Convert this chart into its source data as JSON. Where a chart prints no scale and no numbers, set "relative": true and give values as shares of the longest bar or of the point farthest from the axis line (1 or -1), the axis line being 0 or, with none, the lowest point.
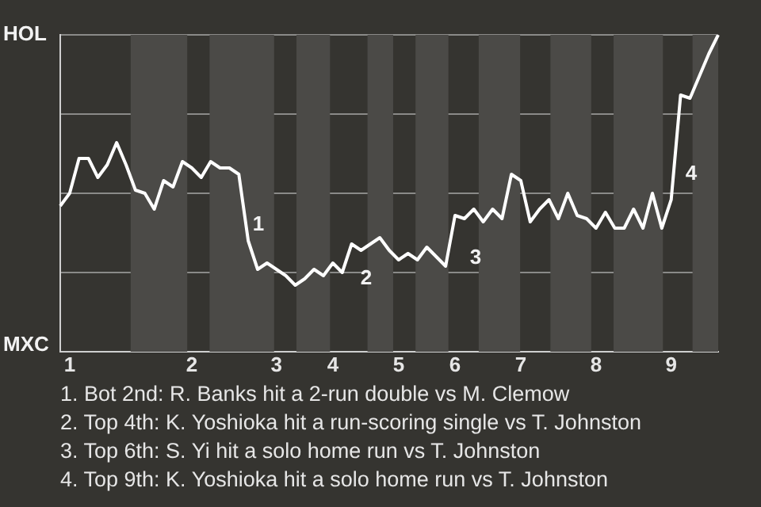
{
  "chart_data": {
    "type": "line",
    "relative": true,
    "categories": [
      null,
      "1",
      null,
      null,
      null,
      null,
      null,
      null,
      null,
      null,
      null,
      null,
      null,
      null,
      "2",
      null,
      null,
      null,
      null,
      null,
      null,
      null,
      null,
      "3",
      null,
      null,
      null,
      null,
      null,
      "4",
      null,
      null,
      null,
      null,
      null,
      null,
      "5",
      null,
      null,
      null,
      null,
      null,
      "6",
      null,
      null,
      null,
      null,
      null,
      null,
      "7",
      null,
      null,
      null,
      null,
      null,
      null,
      null,
      "8",
      null,
      null,
      null,
      null,
      null,
      null,
      null,
      "9",
      null,
      null,
      null,
      null,
      null
    ],
    "series": [
      {
        "color": "#ffffff",
        "values": [
          0.46,
          0.5,
          0.61,
          0.61,
          0.55,
          0.59,
          0.66,
          0.59,
          0.51,
          0.5,
          0.45,
          0.54,
          0.52,
          0.6,
          0.58,
          0.55,
          0.6,
          0.58,
          0.58,
          0.56,
          0.35,
          0.26,
          0.28,
          0.26,
          0.24,
          0.21,
          0.23,
          0.26,
          0.24,
          0.28,
          0.25,
          0.34,
          0.32,
          0.34,
          0.36,
          0.32,
          0.29,
          0.31,
          0.29,
          0.33,
          0.3,
          0.27,
          0.43,
          0.42,
          0.45,
          0.41,
          0.45,
          0.42,
          0.56,
          0.54,
          0.41,
          0.45,
          0.48,
          0.42,
          0.5,
          0.43,
          0.42,
          0.39,
          0.44,
          0.39,
          0.39,
          0.45,
          0.39,
          0.5,
          0.39,
          0.48,
          0.81,
          0.8,
          0.87,
          0.94,
          1
        ]
      }
    ],
    "grid": "y",
    "marker": "none",
    "line_style": "solid",
    "annotations": [
      "HOL",
      "MXC",
      "1",
      "2",
      "3",
      "4",
      "1. Bot 2nd: R. Banks hit a 2-run double vs M. Clemow",
      "2. Top 4th: K. Yoshioka hit a run-scoring single vs T. Johnston",
      "3. Top 6th: S. Yi hit a solo home run vs T. Johnston",
      "4. Top 9th: K. Yoshioka hit a solo home run vs T. Johnston"
    ]
  }
}
